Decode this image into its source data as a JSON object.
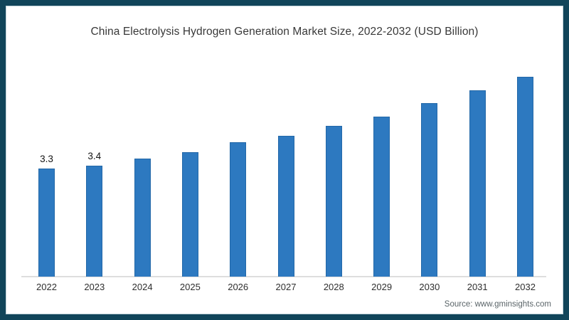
{
  "title": "China Electrolysis Hydrogen Generation Market Size, 2022-2032 (USD Billion)",
  "source": "Source: www.gminsights.com",
  "colors": {
    "frame_border": "#11455a",
    "bar_fill": "#2d79c0",
    "bar_border": "#2368a8",
    "axis_line": "#dedede",
    "title_text": "#383838",
    "value_label_text": "#141414",
    "year_label_text": "#2e2e2e",
    "source_text": "#5a6468",
    "background": "#ffffff"
  },
  "chart_data": {
    "type": "bar",
    "title": "China Electrolysis Hydrogen Generation Market Size, 2022-2032 (USD Billion)",
    "categories": [
      "2022",
      "2023",
      "2024",
      "2025",
      "2026",
      "2027",
      "2028",
      "2029",
      "2030",
      "2031",
      "2032"
    ],
    "values": [
      3.3,
      3.4,
      3.6,
      3.8,
      4.1,
      4.3,
      4.6,
      4.9,
      5.3,
      5.7,
      6.1
    ],
    "data_labels": [
      "3.3",
      "3.4",
      null,
      null,
      null,
      null,
      null,
      null,
      null,
      null,
      null
    ],
    "xlabel": "",
    "ylabel": "",
    "ylim": [
      0,
      6.5
    ],
    "grid": false,
    "legend": false,
    "y_axis_visible": false,
    "source": "Source: www.gminsights.com"
  }
}
